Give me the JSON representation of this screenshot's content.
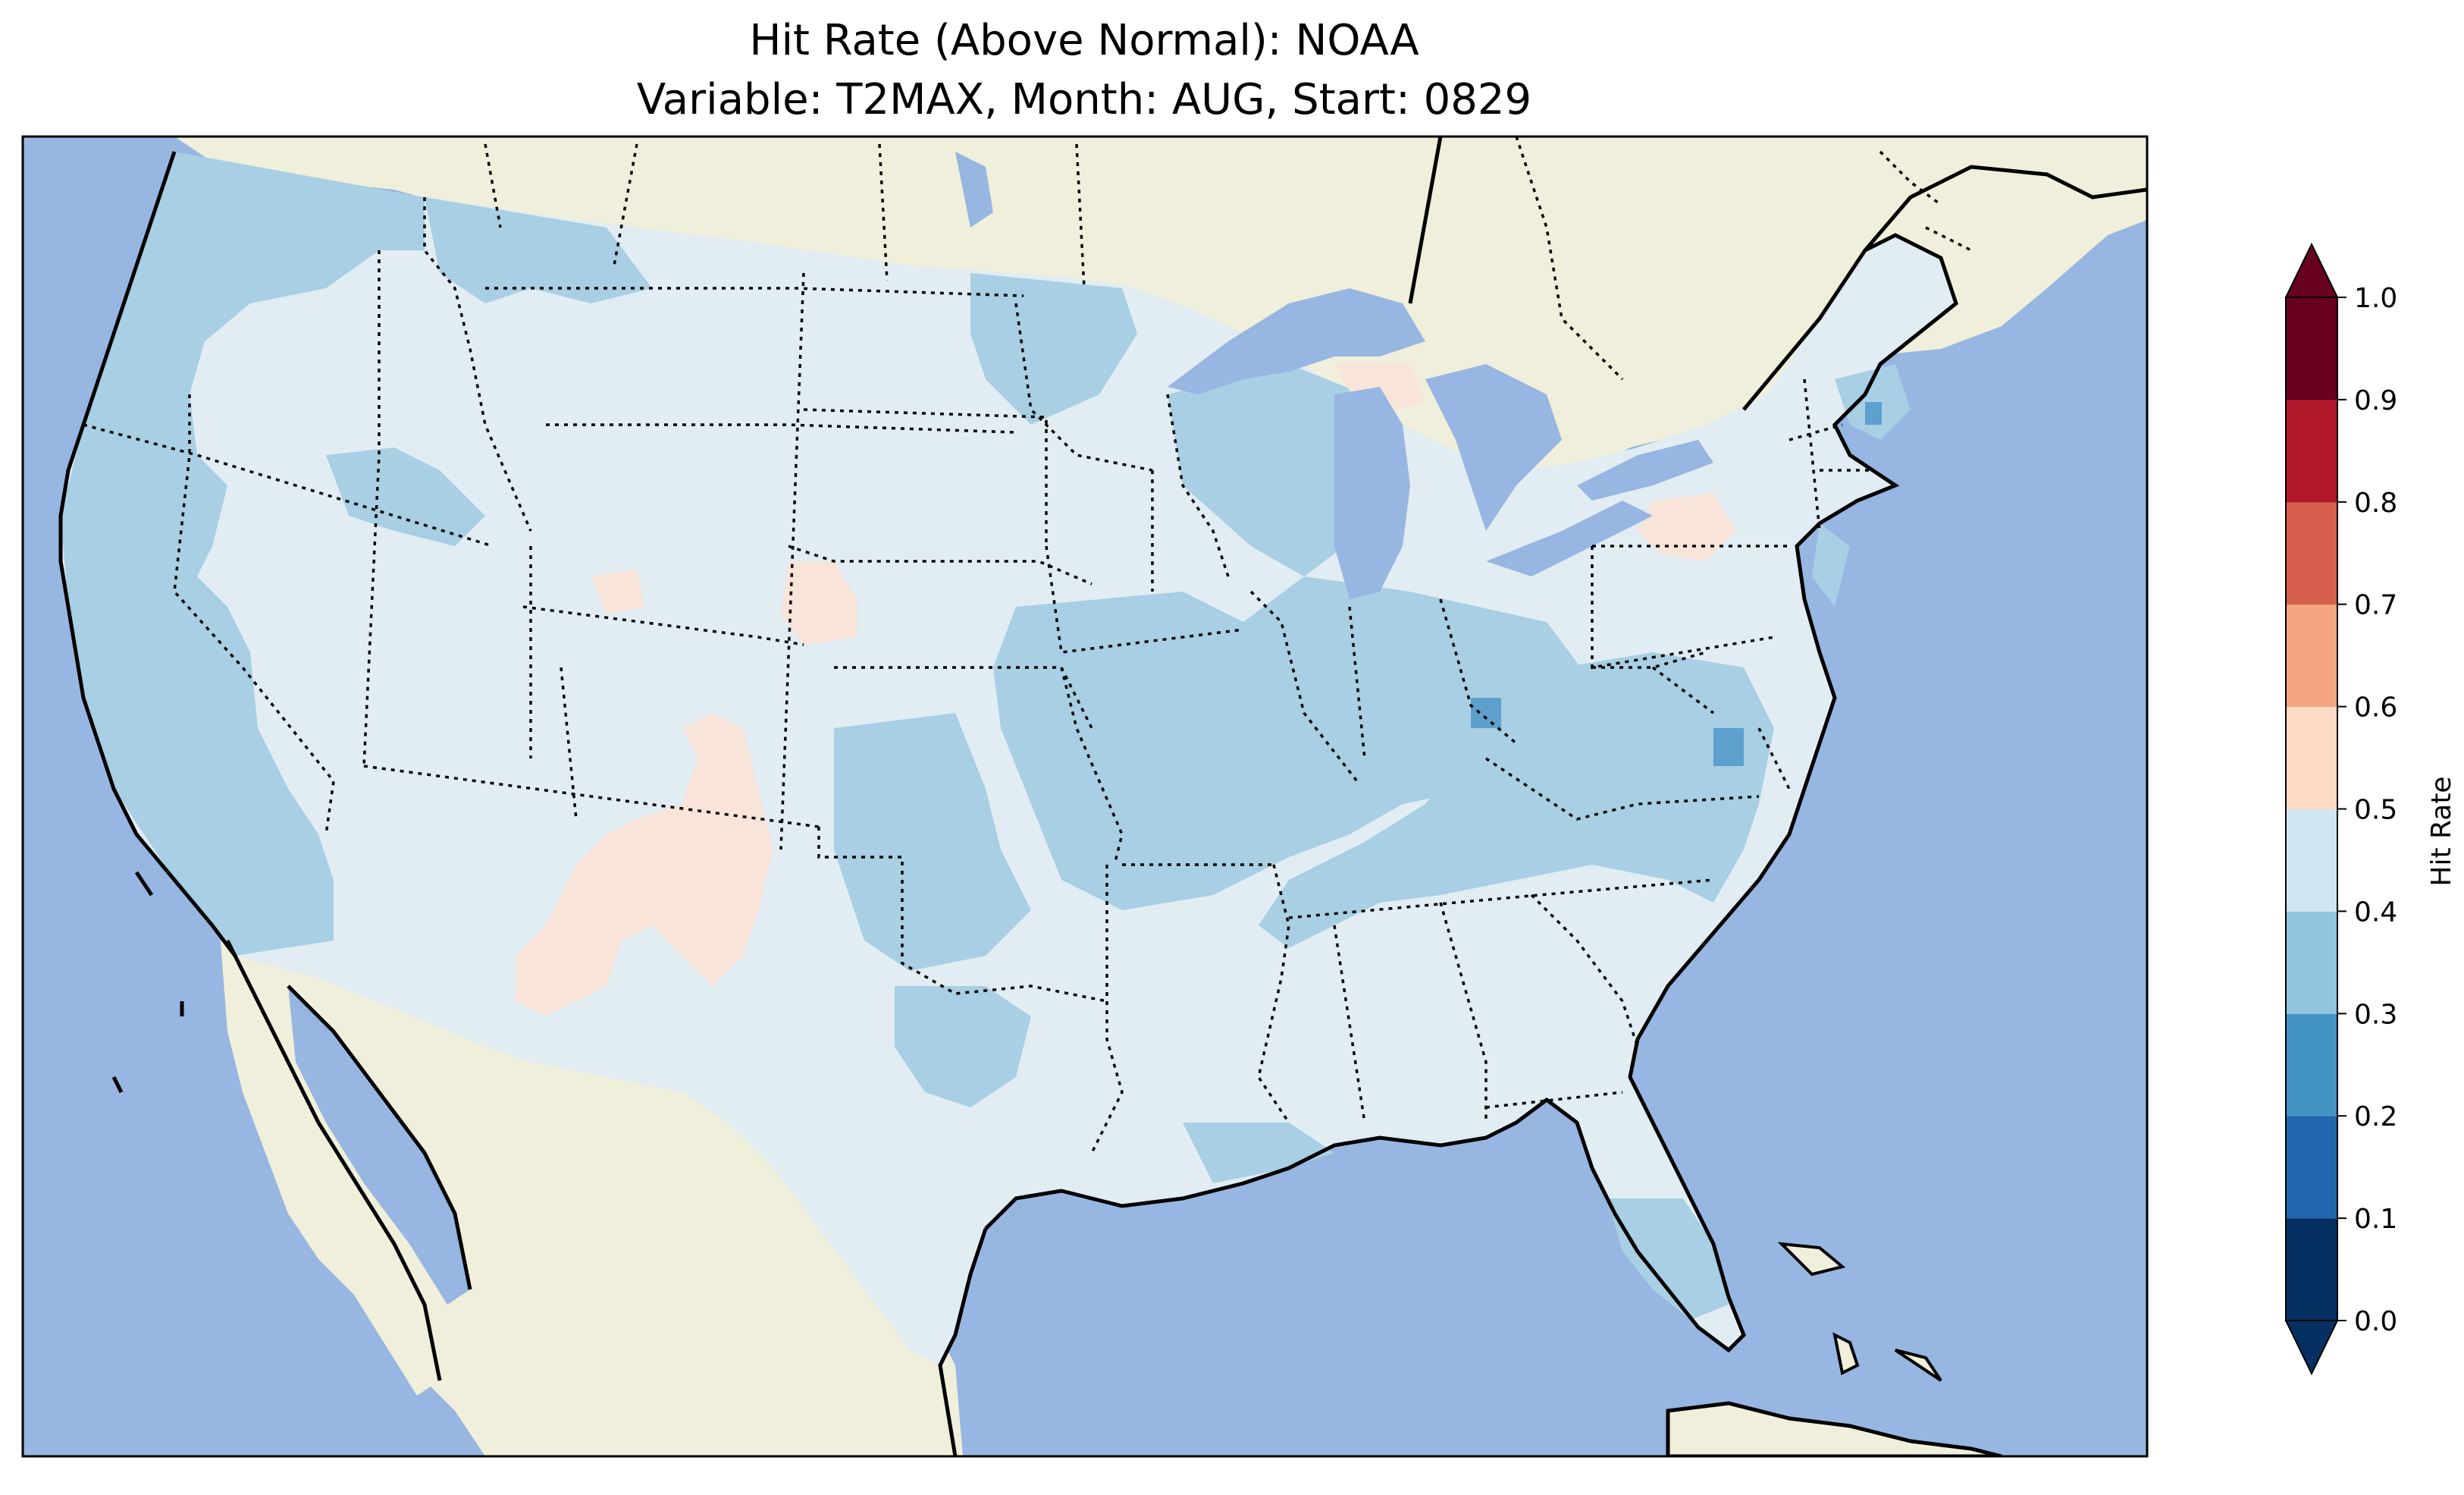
{
  "title": {
    "line1": "Hit Rate (Above Normal): NOAA",
    "line2": "Variable: T2MAX, Month: AUG, Start: 0829"
  },
  "colorbar": {
    "label": "Hit Rate",
    "ticks": [
      "0.0",
      "0.1",
      "0.2",
      "0.3",
      "0.4",
      "0.5",
      "0.6",
      "0.7",
      "0.8",
      "0.9",
      "1.0"
    ],
    "colors": [
      "#053061",
      "#2166ac",
      "#4393c3",
      "#92c5de",
      "#d1e5f0",
      "#fddbc7",
      "#f4a582",
      "#d6604d",
      "#b2182b",
      "#67001f"
    ],
    "extend_low_color": "#053061",
    "extend_high_color": "#67001f",
    "range": [
      0.0,
      1.0
    ]
  },
  "map": {
    "ocean_color": "#97b6e1",
    "land_color": "#efefdb",
    "lake_color": "#97b6e1",
    "dominant_bin_color": "#e1ecf3",
    "low_bin_color": "#a8cfe3",
    "high_bin_color": "#f9e4da",
    "lowest_bin_color": "#5d9fcd"
  }
}
